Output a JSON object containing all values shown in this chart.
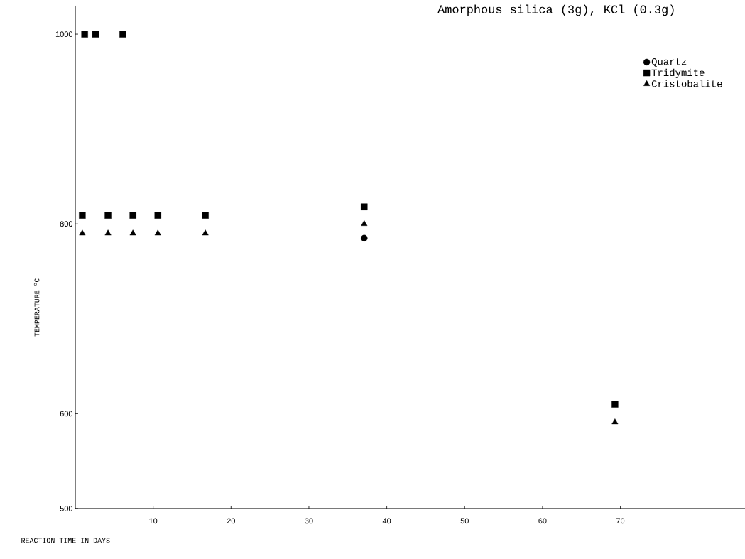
{
  "chart_data": {
    "type": "scatter",
    "title": "Amorphous silica (3g), KCl (0.3g)",
    "xlabel": "REACTION TIME IN DAYS",
    "ylabel": "TEMPERATURE  $^{o}$C",
    "xlim": [
      0,
      86
    ],
    "xticks": [
      10,
      20,
      30,
      40,
      50,
      60,
      70
    ],
    "ylim": [
      500,
      1030
    ],
    "yticks": [
      500,
      600,
      800,
      1000
    ],
    "grid": false,
    "legend": "top right",
    "series": [
      {
        "name": "Quartz",
        "color": "#000000",
        "marker": "circle",
        "x": [
          37.1
        ],
        "values": [
          785
        ]
      },
      {
        "name": "Tridymite",
        "color": "#000000",
        "marker": "square",
        "x": [
          1.2,
          2.6,
          6.1,
          0.9,
          4.2,
          7.4,
          10.6,
          16.7,
          37.1,
          69.3
        ],
        "values": [
          1000,
          1000,
          1000,
          809,
          809,
          809,
          809,
          809,
          818,
          610
        ]
      },
      {
        "name": "Cristobalite",
        "color": "#000000",
        "marker": "triangle",
        "x": [
          0.9,
          4.2,
          7.4,
          10.6,
          16.7,
          37.1,
          69.3
        ],
        "values": [
          790,
          790,
          790,
          790,
          790,
          800,
          591
        ]
      }
    ]
  }
}
